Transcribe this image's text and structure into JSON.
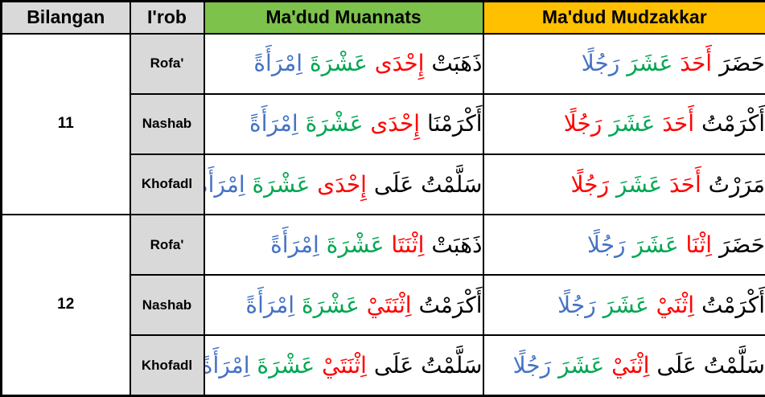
{
  "header": {
    "bilangan": "Bilangan",
    "irob": "I'rob",
    "muannats": "Ma'dud Muannats",
    "mudzakkar": "Ma'dud Mudzakkar"
  },
  "colors": {
    "header_gray": "#D9D9D9",
    "header_green": "#7DC24B",
    "header_gold": "#FFC000",
    "irob_gray": "#D9D9D9",
    "word_red": "#FF0000",
    "word_green": "#00A651",
    "word_blue": "#4472C4",
    "word_black": "#000000"
  },
  "groups": [
    {
      "number": "11"
    },
    {
      "number": "12"
    }
  ],
  "rows": [
    {
      "irob": "Rofa'",
      "muannats": [
        {
          "t": "ذَهَبَتْ",
          "c": "#000000"
        },
        {
          "t": "إِحْدَى",
          "c": "#FF0000"
        },
        {
          "t": "عَشْرَةَ",
          "c": "#00A651"
        },
        {
          "t": "اِمْرَأَةً",
          "c": "#4472C4"
        }
      ],
      "mudzakkar": [
        {
          "t": "حَضَرَ",
          "c": "#000000"
        },
        {
          "t": "أَحَدَ",
          "c": "#FF0000"
        },
        {
          "t": "عَشَرَ",
          "c": "#00A651"
        },
        {
          "t": "رَجُلًا",
          "c": "#4472C4"
        }
      ]
    },
    {
      "irob": "Nashab",
      "muannats": [
        {
          "t": "أَكْرَمْنَا",
          "c": "#000000"
        },
        {
          "t": "إِحْدَى",
          "c": "#FF0000"
        },
        {
          "t": "عَشْرَةَ",
          "c": "#00A651"
        },
        {
          "t": "اِمْرَأَةً",
          "c": "#4472C4"
        }
      ],
      "mudzakkar": [
        {
          "t": "أَكْرَمْتُ",
          "c": "#000000"
        },
        {
          "t": "أَحَدَ",
          "c": "#FF0000"
        },
        {
          "t": "عَشَرَ",
          "c": "#00A651"
        },
        {
          "t": "رَجُلًا",
          "c": "#FF0000"
        }
      ]
    },
    {
      "irob": "Khofadl",
      "muannats": [
        {
          "t": "سَلَّمْتُ",
          "c": "#000000"
        },
        {
          "t": "عَلَى",
          "c": "#000000"
        },
        {
          "t": "إِحْدَى",
          "c": "#FF0000"
        },
        {
          "t": "عَشْرَةَ",
          "c": "#00A651"
        },
        {
          "t": "اِمْرَأَةً",
          "c": "#4472C4"
        }
      ],
      "mudzakkar": [
        {
          "t": "مَرَرْتُ",
          "c": "#000000"
        },
        {
          "t": "أَحَدَ",
          "c": "#FF0000"
        },
        {
          "t": "عَشَرَ",
          "c": "#00A651"
        },
        {
          "t": "رَجُلًا",
          "c": "#FF0000"
        }
      ]
    },
    {
      "irob": "Rofa'",
      "muannats": [
        {
          "t": "ذَهَبَتْ",
          "c": "#000000"
        },
        {
          "t": "اِثْنَتَا",
          "c": "#FF0000"
        },
        {
          "t": "عَشْرَةَ",
          "c": "#00A651"
        },
        {
          "t": "اِمْرَأَةً",
          "c": "#4472C4"
        }
      ],
      "mudzakkar": [
        {
          "t": "حَضَرَ",
          "c": "#000000"
        },
        {
          "t": "اِثْنَا",
          "c": "#FF0000"
        },
        {
          "t": "عَشَرَ",
          "c": "#00A651"
        },
        {
          "t": "رَجُلًا",
          "c": "#4472C4"
        }
      ]
    },
    {
      "irob": "Nashab",
      "muannats": [
        {
          "t": "أَكْرَمْتُ",
          "c": "#000000"
        },
        {
          "t": "اِثْنَتَيْ",
          "c": "#FF0000"
        },
        {
          "t": "عَشْرَةَ",
          "c": "#00A651"
        },
        {
          "t": "اِمْرَأَةً",
          "c": "#4472C4"
        }
      ],
      "mudzakkar": [
        {
          "t": "أَكْرَمْتُ",
          "c": "#000000"
        },
        {
          "t": "اِثْنَيْ",
          "c": "#FF0000"
        },
        {
          "t": "عَشَرَ",
          "c": "#00A651"
        },
        {
          "t": "رَجُلًا",
          "c": "#4472C4"
        }
      ]
    },
    {
      "irob": "Khofadl",
      "muannats": [
        {
          "t": "سَلَّمْتُ",
          "c": "#000000"
        },
        {
          "t": "عَلَى",
          "c": "#000000"
        },
        {
          "t": "اِثْنَتَيْ",
          "c": "#FF0000"
        },
        {
          "t": "عَشْرَةَ",
          "c": "#00A651"
        },
        {
          "t": "اِمْرَأَةً",
          "c": "#4472C4"
        }
      ],
      "mudzakkar": [
        {
          "t": "سَلَّمْتُ",
          "c": "#000000"
        },
        {
          "t": "عَلَى",
          "c": "#000000"
        },
        {
          "t": "اِثْنَيْ",
          "c": "#FF0000"
        },
        {
          "t": "عَشَرَ",
          "c": "#00A651"
        },
        {
          "t": "رَجُلًا",
          "c": "#4472C4"
        }
      ]
    }
  ]
}
